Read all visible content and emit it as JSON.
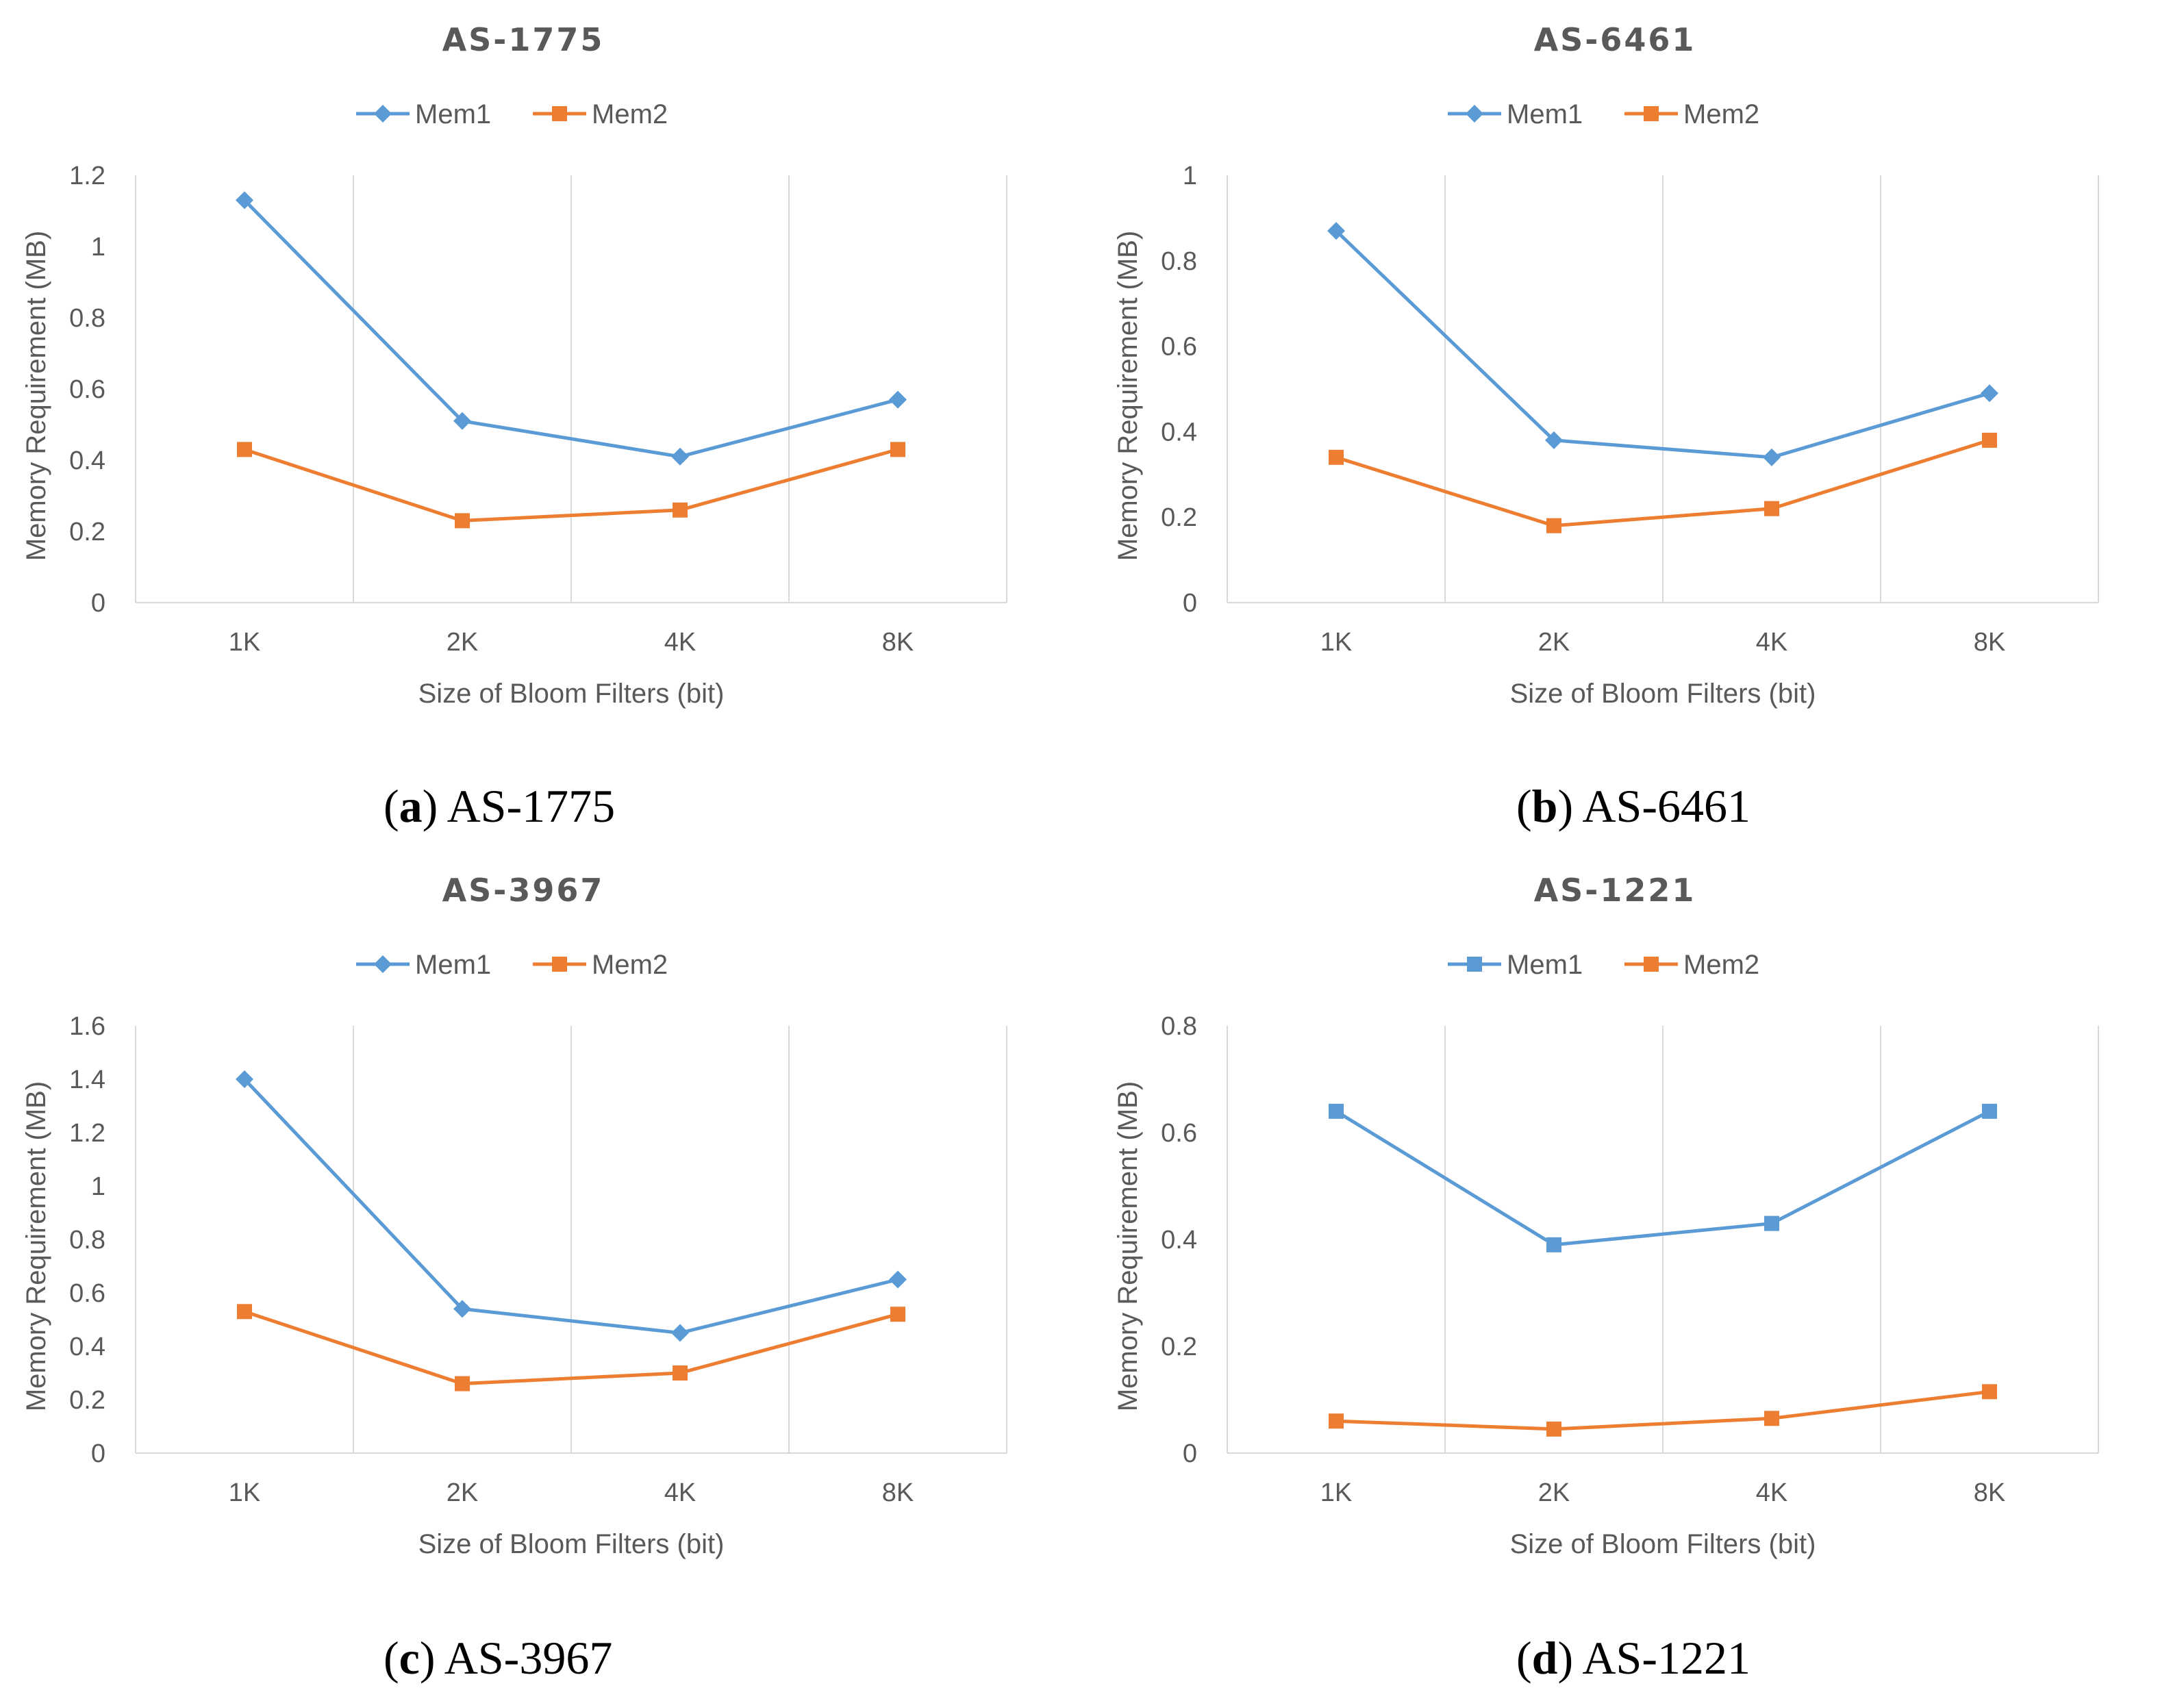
{
  "colors": {
    "mem1": "#5B9BD5",
    "mem2": "#ED7D31",
    "grid": "#D9D9D9",
    "text": "#595959"
  },
  "chart_data": [
    {
      "type": "line",
      "title": "AS-1775",
      "xlabel": "Size of Bloom Filters (bit)",
      "ylabel": "Memory Requirement (MB)",
      "categories": [
        "1K",
        "2K",
        "4K",
        "8K"
      ],
      "ylim": [
        0,
        1.2
      ],
      "yticks": [
        "0",
        "0.2",
        "0.4",
        "0.6",
        "0.8",
        "1",
        "1.2"
      ],
      "legend_position": "top",
      "grid": "vertical",
      "series": [
        {
          "name": "Mem1",
          "marker": "diamond",
          "values": [
            1.13,
            0.51,
            0.41,
            0.57
          ]
        },
        {
          "name": "Mem2",
          "marker": "square",
          "values": [
            0.43,
            0.23,
            0.26,
            0.43
          ]
        }
      ],
      "caption": {
        "letter": "a",
        "text": "AS-1775"
      }
    },
    {
      "type": "line",
      "title": "AS-6461",
      "xlabel": "Size of Bloom Filters (bit)",
      "ylabel": "Memory Requirement (MB)",
      "categories": [
        "1K",
        "2K",
        "4K",
        "8K"
      ],
      "ylim": [
        0,
        1
      ],
      "yticks": [
        "0",
        "0.2",
        "0.4",
        "0.6",
        "0.8",
        "1"
      ],
      "legend_position": "top",
      "grid": "vertical",
      "series": [
        {
          "name": "Mem1",
          "marker": "diamond",
          "values": [
            0.87,
            0.38,
            0.34,
            0.49
          ]
        },
        {
          "name": "Mem2",
          "marker": "square",
          "values": [
            0.34,
            0.18,
            0.22,
            0.38
          ]
        }
      ],
      "caption": {
        "letter": "b",
        "text": "AS-6461"
      }
    },
    {
      "type": "line",
      "title": "AS-3967",
      "xlabel": "Size of Bloom Filters (bit)",
      "ylabel": "Memory Requirement (MB)",
      "categories": [
        "1K",
        "2K",
        "4K",
        "8K"
      ],
      "ylim": [
        0,
        1.6
      ],
      "yticks": [
        "0",
        "0.2",
        "0.4",
        "0.6",
        "0.8",
        "1",
        "1.2",
        "1.4",
        "1.6"
      ],
      "legend_position": "top",
      "grid": "vertical",
      "series": [
        {
          "name": "Mem1",
          "marker": "diamond",
          "values": [
            1.4,
            0.54,
            0.45,
            0.65
          ]
        },
        {
          "name": "Mem2",
          "marker": "square",
          "values": [
            0.53,
            0.26,
            0.3,
            0.52
          ]
        }
      ],
      "caption": {
        "letter": "c",
        "text": "AS-3967"
      }
    },
    {
      "type": "line",
      "title": "AS-1221",
      "xlabel": "Size of Bloom Filters (bit)",
      "ylabel": "Memory Requirement (MB)",
      "categories": [
        "1K",
        "2K",
        "4K",
        "8K"
      ],
      "ylim": [
        0,
        0.8
      ],
      "yticks": [
        "0",
        "0.2",
        "0.4",
        "0.6",
        "0.8"
      ],
      "legend_position": "top",
      "grid": "vertical",
      "series": [
        {
          "name": "Mem1",
          "marker": "square",
          "values": [
            0.64,
            0.39,
            0.43,
            0.64
          ]
        },
        {
          "name": "Mem2",
          "marker": "square",
          "values": [
            0.06,
            0.045,
            0.065,
            0.115
          ]
        }
      ],
      "caption": {
        "letter": "d",
        "text": "AS-1221"
      }
    }
  ]
}
